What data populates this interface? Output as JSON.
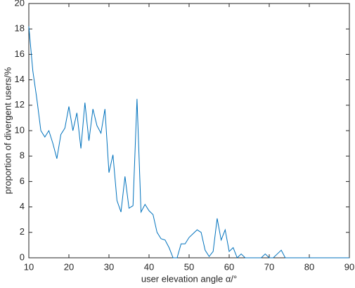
{
  "chart_data": {
    "type": "line",
    "xlabel": "user elevation angle α/°",
    "ylabel": "proportion of divergent users/%",
    "x": [
      10,
      11,
      12,
      13,
      14,
      15,
      16,
      17,
      18,
      19,
      20,
      21,
      22,
      23,
      24,
      25,
      26,
      27,
      28,
      29,
      30,
      31,
      32,
      33,
      34,
      35,
      36,
      37,
      38,
      39,
      40,
      41,
      42,
      43,
      44,
      45,
      46,
      47,
      48,
      49,
      50,
      51,
      52,
      53,
      54,
      55,
      56,
      57,
      58,
      59,
      60,
      61,
      62,
      63,
      64,
      65,
      66,
      67,
      68,
      69,
      70,
      71,
      72,
      73,
      74,
      75,
      76,
      77,
      78,
      79,
      80,
      81,
      82,
      83,
      84,
      85,
      86,
      87,
      88,
      89,
      90
    ],
    "series": [
      {
        "color": "#0072bd",
        "values": [
          18.2,
          14.7,
          12.5,
          10,
          9.5,
          10,
          9,
          7.8,
          9.7,
          10.2,
          11.9,
          10,
          11.4,
          8.6,
          12.2,
          9.2,
          11.7,
          10.4,
          9.8,
          11.7,
          6.7,
          8.1,
          4.5,
          3.6,
          6.4,
          3.9,
          4.1,
          12.5,
          3.6,
          4.2,
          3.7,
          3.4,
          2,
          1.5,
          1.4,
          0.8,
          0,
          0,
          1.1,
          1.1,
          1.6,
          1.9,
          2.2,
          2,
          0.6,
          0.1,
          0.5,
          3.1,
          1.4,
          2.2,
          0.5,
          0.8,
          0,
          0.3,
          0,
          0,
          0,
          0,
          0,
          0.3,
          0,
          0,
          0.3,
          0.6,
          0,
          0,
          0,
          0,
          0,
          0,
          0,
          0,
          0,
          0,
          0,
          0,
          0,
          0,
          0,
          0,
          0
        ]
      }
    ],
    "xlim": [
      10,
      90
    ],
    "xticks": [
      10,
      20,
      30,
      40,
      50,
      60,
      70,
      80,
      90
    ],
    "ylim": [
      0,
      20
    ],
    "yticks": [
      0,
      2,
      4,
      6,
      8,
      10,
      12,
      14,
      16,
      18,
      20
    ],
    "grid": false
  }
}
